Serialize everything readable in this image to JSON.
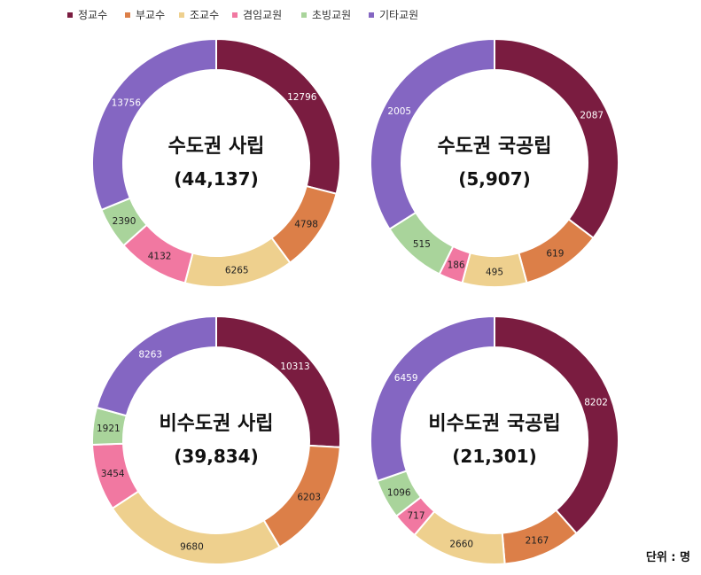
{
  "legend": [
    {
      "label": "정교수",
      "color": "#7a1c40"
    },
    {
      "label": "부교수",
      "color": "#dc7f48"
    },
    {
      "label": "조교수",
      "color": "#eed08e"
    },
    {
      "label": "겸임교원",
      "color": "#f178a1"
    },
    {
      "label": "초빙교원",
      "color": "#a9d49b"
    },
    {
      "label": "기타교원",
      "color": "#8466c2"
    }
  ],
  "unit_label": "단위 : 명",
  "chart_data": [
    {
      "type": "pie",
      "style": "donut",
      "title": "수도권 사립",
      "total_label": "(44,137)",
      "categories": [
        "정교수",
        "부교수",
        "조교수",
        "겸임교원",
        "초빙교원",
        "기타교원"
      ],
      "values": [
        12796,
        4798,
        6265,
        4132,
        2390,
        13756
      ]
    },
    {
      "type": "pie",
      "style": "donut",
      "title": "수도권 국공립",
      "total_label": "(5,907)",
      "categories": [
        "정교수",
        "부교수",
        "조교수",
        "겸임교원",
        "초빙교원",
        "기타교원"
      ],
      "values": [
        2087,
        619,
        495,
        186,
        515,
        2005
      ]
    },
    {
      "type": "pie",
      "style": "donut",
      "title": "비수도권 사립",
      "total_label": "(39,834)",
      "categories": [
        "정교수",
        "부교수",
        "조교수",
        "겸임교원",
        "초빙교원",
        "기타교원"
      ],
      "values": [
        10313,
        6203,
        9680,
        3454,
        1921,
        8263
      ]
    },
    {
      "type": "pie",
      "style": "donut",
      "title": "비수도권 국공립",
      "total_label": "(21,301)",
      "categories": [
        "정교수",
        "부교수",
        "조교수",
        "겸임교원",
        "초빙교원",
        "기타교원"
      ],
      "values": [
        8202,
        2167,
        2660,
        717,
        1096,
        6459
      ]
    }
  ]
}
